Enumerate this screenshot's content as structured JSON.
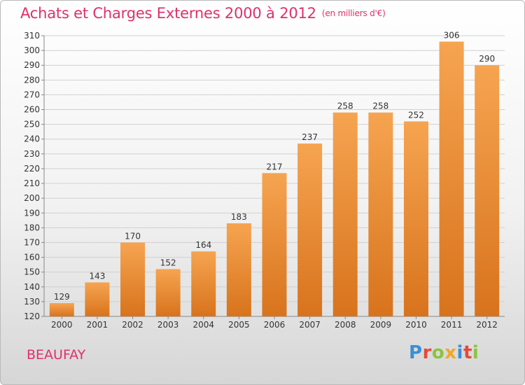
{
  "title": "Achats et Charges Externes 2000 à 2012",
  "unit": "(en milliers d'€)",
  "commune": "BEAUFAY",
  "logo": {
    "letters": [
      {
        "ch": "P",
        "color": "#3a8fd6"
      },
      {
        "ch": "r",
        "color": "#e44a3a"
      },
      {
        "ch": "o",
        "color": "#8ac43f"
      },
      {
        "ch": "x",
        "color": "#f5a623"
      },
      {
        "ch": "i",
        "color": "#3a8fd6"
      },
      {
        "ch": "t",
        "color": "#e44a3a"
      },
      {
        "ch": "i",
        "color": "#8ac43f"
      }
    ]
  },
  "colors": {
    "bar_top": "#f6a451",
    "bar_bottom": "#d8731c",
    "title": "#e0306a",
    "grid": "#d0d0d0"
  },
  "chart_data": {
    "type": "bar",
    "title": "Achats et Charges Externes 2000 à 2012",
    "subtitle": "(en milliers d'€)",
    "categories": [
      "2000",
      "2001",
      "2002",
      "2003",
      "2004",
      "2005",
      "2006",
      "2007",
      "2008",
      "2009",
      "2010",
      "2011",
      "2012"
    ],
    "values": [
      129,
      143,
      170,
      152,
      164,
      183,
      217,
      237,
      258,
      258,
      252,
      306,
      290
    ],
    "ylim": [
      120,
      310
    ],
    "yticks": [
      120,
      130,
      140,
      150,
      160,
      170,
      180,
      190,
      200,
      210,
      220,
      230,
      240,
      250,
      260,
      270,
      280,
      290,
      300,
      310
    ],
    "grid": true,
    "xlabel": "",
    "ylabel": ""
  }
}
